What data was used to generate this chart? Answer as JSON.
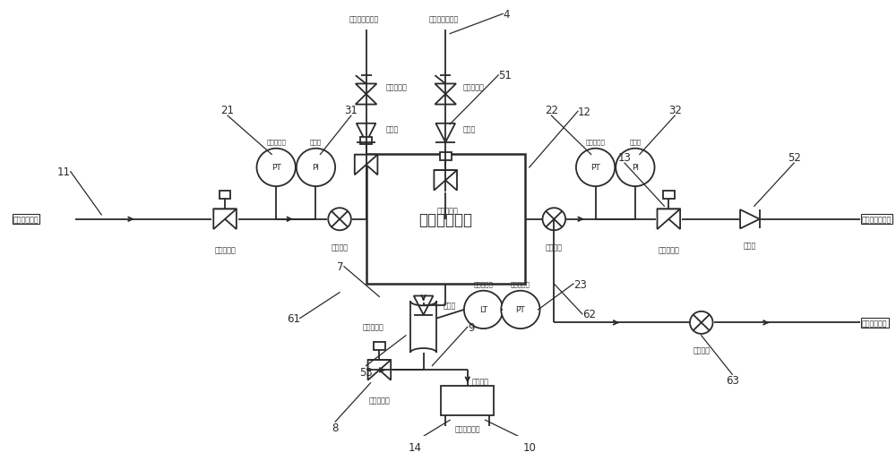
{
  "bg_color": "#ffffff",
  "lc": "#2a2a2a",
  "lw": 1.3,
  "main_box_label": "氢气分离装置",
  "labels": {
    "inlet": "高压氢气入口",
    "outlet_high": "高纯度氢气出口",
    "outlet_gas": "气体放散出口",
    "drain_inlet": "洗涤入口",
    "drain_device": "洗涤收集装置",
    "auto_valve": "自动控制鄀",
    "flow_valve": "流量控制鄀",
    "manual_ball": "手动球鄀",
    "check_valve": "单向鄀",
    "separator": "气液分离器",
    "pt": "压力变送器",
    "pi": "压力表",
    "lt": "液位变送器",
    "purge_inlet": "吹扫置换气入口",
    "manual_stop": "手动截止鄀"
  },
  "fs_label": 5.8,
  "fs_num": 8.5
}
